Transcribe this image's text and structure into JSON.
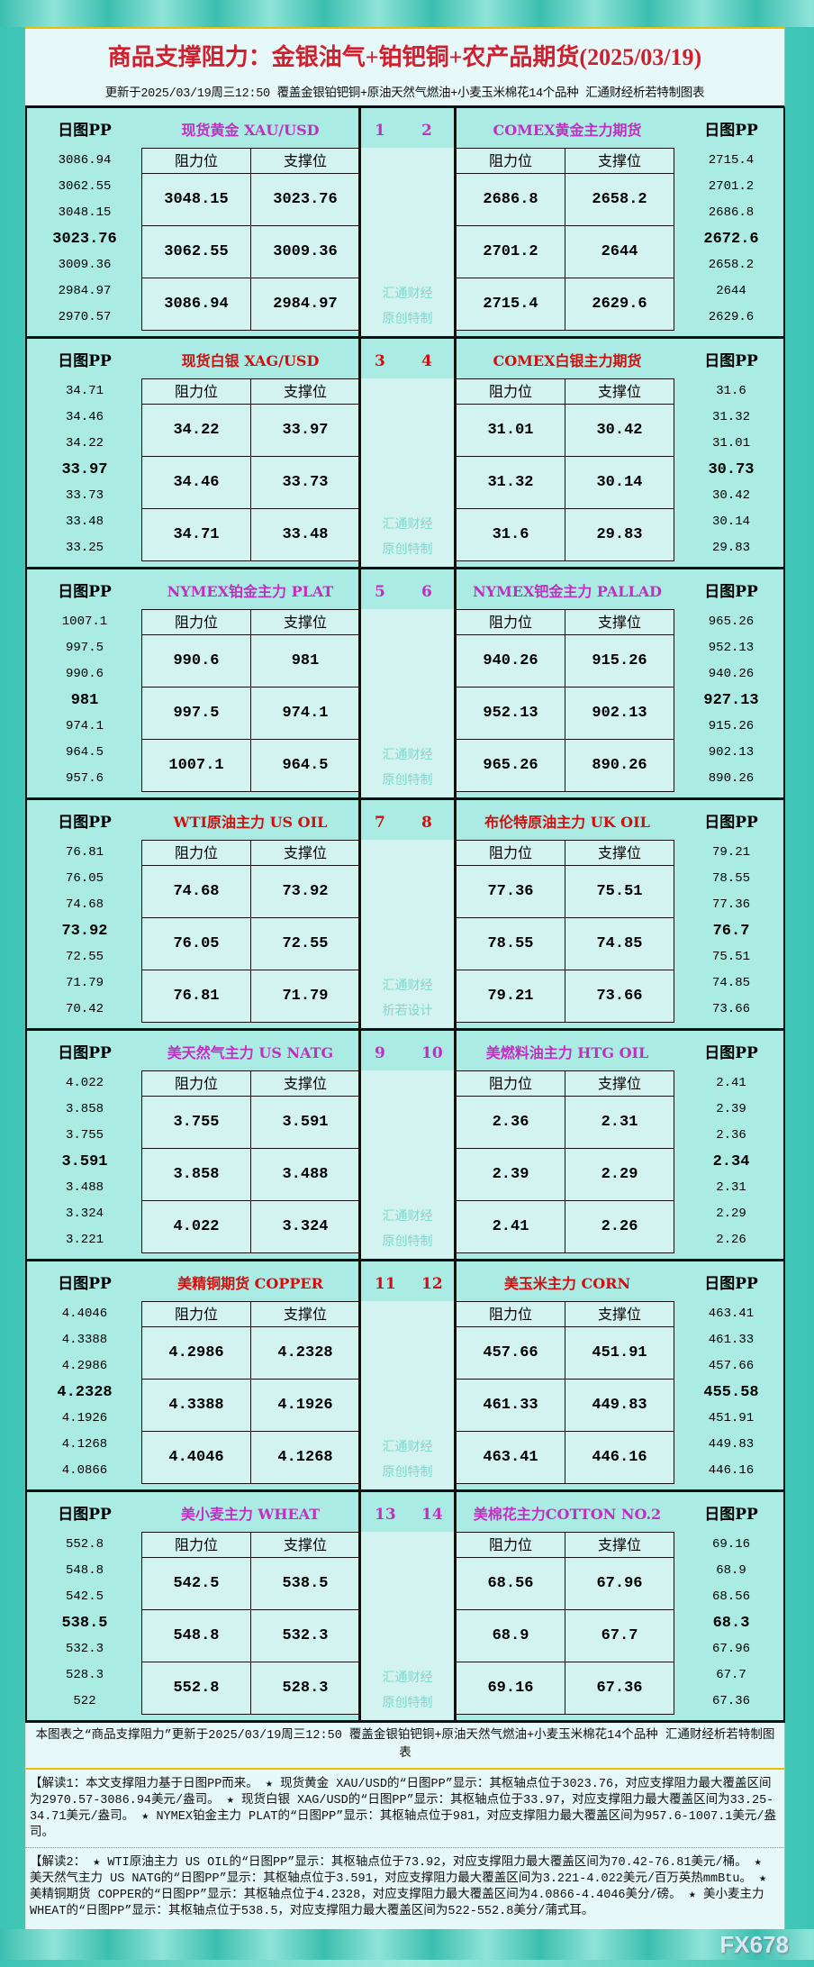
{
  "header": {
    "title": "商品支撑阻力：金银油气+铂钯铜+农产品期货(2025/03/19)",
    "subtitle": "更新于2025/03/19周三12:50 覆盖金银铂钯铜+原油天然气燃油+小麦玉米棉花14个品种 汇通财经析若特制图表"
  },
  "labels": {
    "pp": "日图PP",
    "res": "阻力位",
    "sup": "支撑位"
  },
  "colors": {
    "purple": "#c030c0",
    "red": "#d01010"
  },
  "sections": [
    {
      "color": "purple",
      "left": {
        "title": "现货黄金 XAU/USD",
        "num": "1",
        "pp": [
          "3086.94",
          "3062.55",
          "3048.15",
          "3023.76",
          "3009.36",
          "2984.97",
          "2970.57"
        ],
        "rows": [
          [
            "3048.15",
            "3023.76"
          ],
          [
            "3062.55",
            "3009.36"
          ],
          [
            "3086.94",
            "2984.97"
          ]
        ]
      },
      "right": {
        "title": "COMEX黄金主力期货",
        "num": "2",
        "pp": [
          "2715.4",
          "2701.2",
          "2686.8",
          "2672.6",
          "2658.2",
          "2644",
          "2629.6"
        ],
        "rows": [
          [
            "2686.8",
            "2658.2"
          ],
          [
            "2701.2",
            "2644"
          ],
          [
            "2715.4",
            "2629.6"
          ]
        ]
      },
      "wm": [
        "汇通财经",
        "原创特制"
      ]
    },
    {
      "color": "red",
      "left": {
        "title": "现货白银 XAG/USD",
        "num": "3",
        "pp": [
          "34.71",
          "34.46",
          "34.22",
          "33.97",
          "33.73",
          "33.48",
          "33.25"
        ],
        "rows": [
          [
            "34.22",
            "33.97"
          ],
          [
            "34.46",
            "33.73"
          ],
          [
            "34.71",
            "33.48"
          ]
        ]
      },
      "right": {
        "title": "COMEX白银主力期货",
        "num": "4",
        "pp": [
          "31.6",
          "31.32",
          "31.01",
          "30.73",
          "30.42",
          "30.14",
          "29.83"
        ],
        "rows": [
          [
            "31.01",
            "30.42"
          ],
          [
            "31.32",
            "30.14"
          ],
          [
            "31.6",
            "29.83"
          ]
        ]
      },
      "wm": [
        "汇通财经",
        "原创特制"
      ]
    },
    {
      "color": "purple",
      "left": {
        "title": "NYMEX铂金主力 PLAT",
        "num": "5",
        "pp": [
          "1007.1",
          "997.5",
          "990.6",
          "981",
          "974.1",
          "964.5",
          "957.6"
        ],
        "rows": [
          [
            "990.6",
            "981"
          ],
          [
            "997.5",
            "974.1"
          ],
          [
            "1007.1",
            "964.5"
          ]
        ]
      },
      "right": {
        "title": "NYMEX钯金主力 PALLAD",
        "num": "6",
        "pp": [
          "965.26",
          "952.13",
          "940.26",
          "927.13",
          "915.26",
          "902.13",
          "890.26"
        ],
        "rows": [
          [
            "940.26",
            "915.26"
          ],
          [
            "952.13",
            "902.13"
          ],
          [
            "965.26",
            "890.26"
          ]
        ]
      },
      "wm": [
        "汇通财经",
        "原创特制"
      ]
    },
    {
      "color": "red",
      "left": {
        "title": "WTI原油主力 US OIL",
        "num": "7",
        "pp": [
          "76.81",
          "76.05",
          "74.68",
          "73.92",
          "72.55",
          "71.79",
          "70.42"
        ],
        "rows": [
          [
            "74.68",
            "73.92"
          ],
          [
            "76.05",
            "72.55"
          ],
          [
            "76.81",
            "71.79"
          ]
        ]
      },
      "right": {
        "title": "布伦特原油主力 UK OIL",
        "num": "8",
        "pp": [
          "79.21",
          "78.55",
          "77.36",
          "76.7",
          "75.51",
          "74.85",
          "73.66"
        ],
        "rows": [
          [
            "77.36",
            "75.51"
          ],
          [
            "78.55",
            "74.85"
          ],
          [
            "79.21",
            "73.66"
          ]
        ]
      },
      "wm": [
        "汇通财经",
        "析若设计"
      ]
    },
    {
      "color": "purple",
      "left": {
        "title": "美天然气主力 US NATG",
        "num": "9",
        "pp": [
          "4.022",
          "3.858",
          "3.755",
          "3.591",
          "3.488",
          "3.324",
          "3.221"
        ],
        "rows": [
          [
            "3.755",
            "3.591"
          ],
          [
            "3.858",
            "3.488"
          ],
          [
            "4.022",
            "3.324"
          ]
        ]
      },
      "right": {
        "title": "美燃料油主力 HTG OIL",
        "num": "10",
        "pp": [
          "2.41",
          "2.39",
          "2.36",
          "2.34",
          "2.31",
          "2.29",
          "2.26"
        ],
        "rows": [
          [
            "2.36",
            "2.31"
          ],
          [
            "2.39",
            "2.29"
          ],
          [
            "2.41",
            "2.26"
          ]
        ]
      },
      "wm": [
        "汇通财经",
        "原创特制"
      ]
    },
    {
      "color": "red",
      "left": {
        "title": "美精铜期货 COPPER",
        "num": "11",
        "pp": [
          "4.4046",
          "4.3388",
          "4.2986",
          "4.2328",
          "4.1926",
          "4.1268",
          "4.0866"
        ],
        "rows": [
          [
            "4.2986",
            "4.2328"
          ],
          [
            "4.3388",
            "4.1926"
          ],
          [
            "4.4046",
            "4.1268"
          ]
        ]
      },
      "right": {
        "title": "美玉米主力 CORN",
        "num": "12",
        "pp": [
          "463.41",
          "461.33",
          "457.66",
          "455.58",
          "451.91",
          "449.83",
          "446.16"
        ],
        "rows": [
          [
            "457.66",
            "451.91"
          ],
          [
            "461.33",
            "449.83"
          ],
          [
            "463.41",
            "446.16"
          ]
        ]
      },
      "wm": [
        "汇通财经",
        "原创特制"
      ]
    },
    {
      "color": "purple",
      "left": {
        "title": "美小麦主力 WHEAT",
        "num": "13",
        "pp": [
          "552.8",
          "548.8",
          "542.5",
          "538.5",
          "532.3",
          "528.3",
          "522"
        ],
        "rows": [
          [
            "542.5",
            "538.5"
          ],
          [
            "548.8",
            "532.3"
          ],
          [
            "552.8",
            "528.3"
          ]
        ]
      },
      "right": {
        "title": "美棉花主力COTTON NO.2",
        "num": "14",
        "pp": [
          "69.16",
          "68.9",
          "68.56",
          "68.3",
          "67.96",
          "67.7",
          "67.36"
        ],
        "rows": [
          [
            "68.56",
            "67.96"
          ],
          [
            "68.9",
            "67.7"
          ],
          [
            "69.16",
            "67.36"
          ]
        ]
      },
      "wm": [
        "汇通财经",
        "原创特制"
      ]
    }
  ],
  "notes": {
    "summary": "本图表之“商品支撑阻力”更新于2025/03/19周三12:50 覆盖金银铂钯铜+原油天然气燃油+小麦玉米棉花14个品种 汇通财经析若特制图表",
    "read1": "【解读1：本文支撑阻力基于日图PP而来。 ★ 现货黄金 XAU/USD的“日图PP”显示：其枢轴点位于3023.76，对应支撑阻力最大覆盖区间为2970.57-3086.94美元/盎司。 ★ 现货白银 XAG/USD的“日图PP”显示：其枢轴点位于33.97，对应支撑阻力最大覆盖区间为33.25-34.71美元/盎司。 ★ NYMEX铂金主力 PLAT的“日图PP”显示：其枢轴点位于981，对应支撑阻力最大覆盖区间为957.6-1007.1美元/盎司。",
    "read2": "【解读2： ★ WTI原油主力 US OIL的“日图PP”显示：其枢轴点位于73.92，对应支撑阻力最大覆盖区间为70.42-76.81美元/桶。 ★ 美天然气主力 US NATG的“日图PP”显示：其枢轴点位于3.591，对应支撑阻力最大覆盖区间为3.221-4.022美元/百万英热mmBtu。 ★ 美精铜期货 COPPER的“日图PP”显示：其枢轴点位于4.2328，对应支撑阻力最大覆盖区间为4.0866-4.4046美分/磅。 ★ 美小麦主力 WHEAT的“日图PP”显示：其枢轴点位于538.5，对应支撑阻力最大覆盖区间为522-552.8美分/蒲式耳。"
  },
  "watermark": "FX678"
}
